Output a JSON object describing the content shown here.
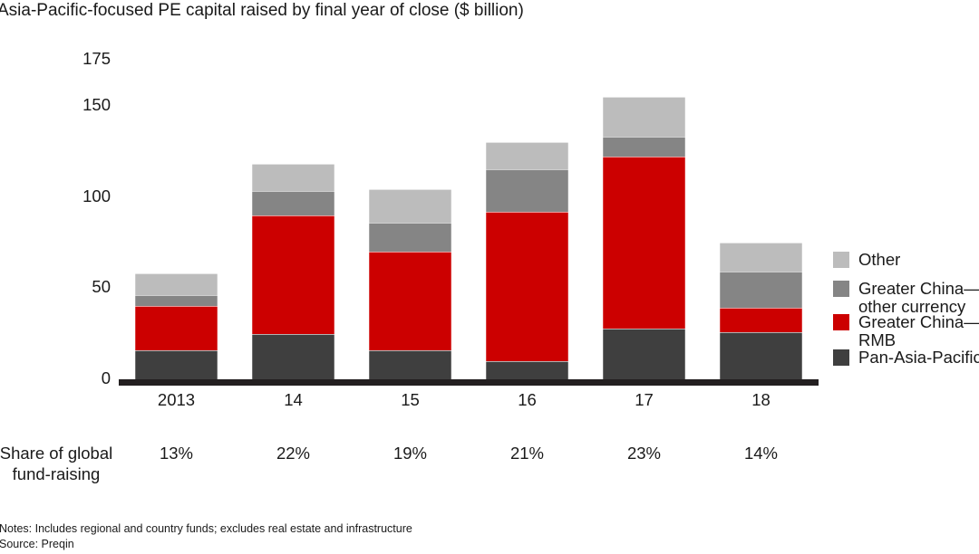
{
  "title": "Asia-Pacific-focused PE capital raised by final year of close ($ billion)",
  "chart_data": {
    "type": "bar",
    "stacked": true,
    "title": "Asia-Pacific-focused PE capital raised by final year of close ($ billion)",
    "categories": [
      "2013",
      "14",
      "15",
      "16",
      "17",
      "18"
    ],
    "series": [
      {
        "name": "Pan-Asia-Pacific",
        "color": "#3f3f3f",
        "values": [
          16,
          25,
          16,
          10,
          28,
          26
        ]
      },
      {
        "name": "Greater China—RMB",
        "color": "#cc0000",
        "values": [
          24,
          65,
          54,
          82,
          94,
          13
        ]
      },
      {
        "name": "Greater China—other currency",
        "color": "#858585",
        "values": [
          6,
          13,
          16,
          23,
          11,
          20
        ]
      },
      {
        "name": "Other",
        "color": "#bcbcbc",
        "values": [
          12,
          15,
          18,
          15,
          22,
          16
        ]
      }
    ],
    "totals": [
      58,
      118,
      104,
      130,
      155,
      75
    ],
    "ylim": [
      0,
      175
    ],
    "yticks": [
      0,
      50,
      100,
      150,
      175
    ],
    "grid": false,
    "axis_color": "#231f20",
    "legend_position": "right",
    "legend": [
      {
        "label": "Other",
        "color": "#bcbcbc"
      },
      {
        "label": "Greater China—\nother currency",
        "color": "#858585"
      },
      {
        "label": "Greater China—\nRMB",
        "color": "#cc0000"
      },
      {
        "label": "Pan-Asia-Pacific",
        "color": "#3f3f3f"
      }
    ]
  },
  "share_row": {
    "label": "Share of global\nfund-raising",
    "values": [
      "13%",
      "22%",
      "19%",
      "21%",
      "23%",
      "14%"
    ]
  },
  "notes": "Notes: Includes regional and country funds; excludes real estate and infrastructure",
  "source": "Source: Preqin"
}
